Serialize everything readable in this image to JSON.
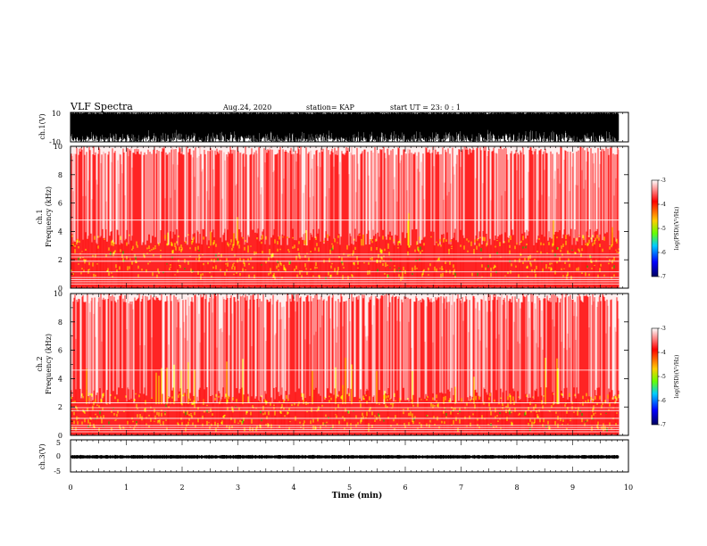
{
  "header": {
    "title": "VLF Spectra",
    "date": "Aug.24, 2020",
    "station": "station= KAP",
    "start": "start UT =  23: 0  : 1"
  },
  "chart_data": [
    {
      "type": "line",
      "name": "ch1-waveform",
      "ylabel": "ch.1(V)",
      "ylim": [
        -10,
        10
      ],
      "y_ticks": [
        "10",
        "-10"
      ],
      "x_range": [
        0,
        9.83
      ],
      "style": "dense saturated waveform"
    },
    {
      "type": "heatmap",
      "name": "ch1-spectrogram",
      "ylabel": "ch.1\nFrequency (kHz)",
      "ylim": [
        0,
        10
      ],
      "y_ticks": [
        "0",
        "2",
        "4",
        "6",
        "8",
        "10"
      ],
      "x_range": [
        0,
        9.83
      ],
      "colorbar": {
        "label": "log(PSD)(V²/Hz)",
        "range": [
          -7,
          -3
        ],
        "ticks": [
          "-3",
          "-4",
          "-5",
          "-6",
          "-7"
        ]
      },
      "intense_band_khz": [
        0.8,
        3.0
      ],
      "colors": {
        "high": "#ff0000",
        "mid": "#ffff00",
        "low": "#00c000"
      }
    },
    {
      "type": "heatmap",
      "name": "ch2-spectrogram",
      "ylabel": "ch.2\nFrequency (kHz)",
      "ylim": [
        0,
        10
      ],
      "y_ticks": [
        "0",
        "2",
        "4",
        "6",
        "8",
        "10"
      ],
      "x_range": [
        0,
        9.83
      ],
      "colorbar": {
        "label": "log(PSD)(V²/Hz)",
        "range": [
          -7,
          -3
        ],
        "ticks": [
          "-3",
          "-4",
          "-5",
          "-6",
          "-7"
        ]
      },
      "intense_band_khz": [
        0.5,
        2.2
      ],
      "colors": {
        "high": "#ff0000",
        "mid": "#ffff00",
        "low": "#00c000"
      }
    },
    {
      "type": "line",
      "name": "ch3-waveform",
      "ylabel": "ch.3(V)",
      "ylim": [
        -5,
        5
      ],
      "y_ticks": [
        "5",
        "0",
        "-5"
      ],
      "x_range": [
        0,
        9.83
      ],
      "level": -0.3,
      "amplitude": 0.6
    }
  ],
  "x_axis": {
    "label": "Time (min)",
    "range": [
      0,
      10
    ],
    "ticks": [
      "0",
      "1",
      "2",
      "3",
      "4",
      "5",
      "6",
      "7",
      "8",
      "9",
      "10"
    ]
  }
}
